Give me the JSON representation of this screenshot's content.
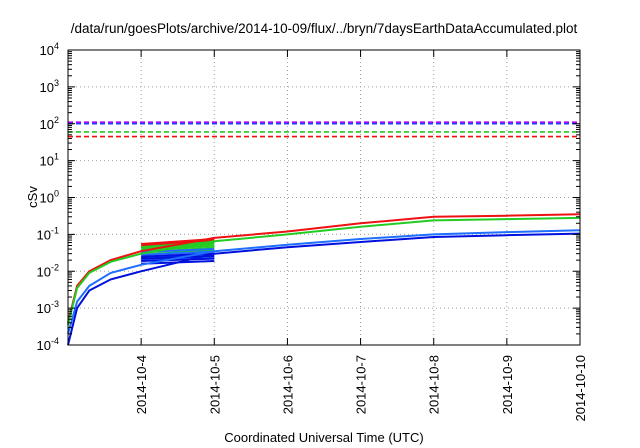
{
  "chart_data": {
    "type": "line",
    "title": "/data/run/goesPlots/archive/2014-10-09/flux/../bryn/7daysEarthDataAccumulated.plot",
    "xlabel": "Coordinated Universal Time (UTC)",
    "ylabel": "cSv",
    "xlim": [
      "2014-10-03",
      "2014-10-10"
    ],
    "ylim": [
      0.0001,
      10000
    ],
    "yscale": "log",
    "grid": true,
    "x_ticks": [
      "2014-10-4",
      "2014-10-5",
      "2014-10-6",
      "2014-10-7",
      "2014-10-8",
      "2014-10-9",
      "2014-10-10"
    ],
    "y_ticks": [
      {
        "value": 0.0001,
        "mantissa": "10",
        "exp": "-4"
      },
      {
        "value": 0.001,
        "mantissa": "10",
        "exp": "-3"
      },
      {
        "value": 0.01,
        "mantissa": "10",
        "exp": "-2"
      },
      {
        "value": 0.1,
        "mantissa": "10",
        "exp": "-1"
      },
      {
        "value": 1,
        "mantissa": "10",
        "exp": "0"
      },
      {
        "value": 10,
        "mantissa": "10",
        "exp": "1"
      },
      {
        "value": 100,
        "mantissa": "10",
        "exp": "2"
      },
      {
        "value": 1000,
        "mantissa": "10",
        "exp": "3"
      },
      {
        "value": 10000,
        "mantissa": "10",
        "exp": "4"
      }
    ],
    "thresholds": [
      {
        "value": 110,
        "color": "#b000ff"
      },
      {
        "value": 100,
        "color": "#2040ff"
      },
      {
        "value": 60,
        "color": "#22cc22"
      },
      {
        "value": 45,
        "color": "#ee1111"
      }
    ],
    "series": [
      {
        "color": "#ee1111",
        "points": [
          [
            "2014-10-03 00:00",
            0.0004
          ],
          [
            "2014-10-03 03:00",
            0.004
          ],
          [
            "2014-10-03 07:00",
            0.01
          ],
          [
            "2014-10-03 14:00",
            0.02
          ],
          [
            "2014-10-04 00:00",
            0.035
          ],
          [
            "2014-10-05 00:00",
            0.08
          ],
          [
            "2014-10-06 00:00",
            0.12
          ],
          [
            "2014-10-07 00:00",
            0.2
          ],
          [
            "2014-10-08 00:00",
            0.3
          ],
          [
            "2014-10-09 00:00",
            0.32
          ],
          [
            "2014-10-10 00:00",
            0.35
          ]
        ]
      },
      {
        "color": "#22cc22",
        "points": [
          [
            "2014-10-03 00:00",
            0.00035
          ],
          [
            "2014-10-03 03:00",
            0.0035
          ],
          [
            "2014-10-03 07:00",
            0.009
          ],
          [
            "2014-10-03 14:00",
            0.018
          ],
          [
            "2014-10-04 00:00",
            0.03
          ],
          [
            "2014-10-05 00:00",
            0.065
          ],
          [
            "2014-10-06 00:00",
            0.1
          ],
          [
            "2014-10-07 00:00",
            0.16
          ],
          [
            "2014-10-08 00:00",
            0.24
          ],
          [
            "2014-10-09 00:00",
            0.26
          ],
          [
            "2014-10-10 00:00",
            0.28
          ]
        ]
      },
      {
        "color": "#1e6eff",
        "points": [
          [
            "2014-10-03 00:00",
            0.0002
          ],
          [
            "2014-10-03 03:00",
            0.0015
          ],
          [
            "2014-10-03 07:00",
            0.004
          ],
          [
            "2014-10-03 14:00",
            0.009
          ],
          [
            "2014-10-04 00:00",
            0.015
          ],
          [
            "2014-10-05 00:00",
            0.035
          ],
          [
            "2014-10-06 00:00",
            0.052
          ],
          [
            "2014-10-07 00:00",
            0.075
          ],
          [
            "2014-10-08 00:00",
            0.1
          ],
          [
            "2014-10-09 00:00",
            0.115
          ],
          [
            "2014-10-10 00:00",
            0.13
          ]
        ]
      },
      {
        "color": "#0010dd",
        "points": [
          [
            "2014-10-03 00:00",
            0.0001
          ],
          [
            "2014-10-03 03:00",
            0.001
          ],
          [
            "2014-10-03 07:00",
            0.003
          ],
          [
            "2014-10-03 14:00",
            0.006
          ],
          [
            "2014-10-04 00:00",
            0.01
          ],
          [
            "2014-10-05 00:00",
            0.03
          ],
          [
            "2014-10-06 00:00",
            0.045
          ],
          [
            "2014-10-07 00:00",
            0.062
          ],
          [
            "2014-10-08 00:00",
            0.085
          ],
          [
            "2014-10-09 00:00",
            0.095
          ],
          [
            "2014-10-10 00:00",
            0.105
          ]
        ]
      }
    ],
    "bundles": [
      {
        "color": "#ee1111",
        "start": "2014-10-04 00:00",
        "end": "2014-10-05 00:00",
        "start_values": [
          0.045,
          0.05,
          0.055
        ],
        "end_values": [
          0.062,
          0.068,
          0.075
        ]
      },
      {
        "color": "#22cc22",
        "start": "2014-10-04 00:00",
        "end": "2014-10-05 00:00",
        "start_values": [
          0.028,
          0.032,
          0.036,
          0.04,
          0.045
        ],
        "end_values": [
          0.038,
          0.044,
          0.05,
          0.056,
          0.062
        ]
      },
      {
        "color": "#1e6eff",
        "start": "2014-10-04 00:00",
        "end": "2014-10-05 00:00",
        "start_values": [
          0.02,
          0.024,
          0.028,
          0.033
        ],
        "end_values": [
          0.024,
          0.029,
          0.034,
          0.04
        ]
      },
      {
        "color": "#0010dd",
        "start": "2014-10-04 00:00",
        "end": "2014-10-05 00:00",
        "start_values": [
          0.016,
          0.019,
          0.022,
          0.025
        ],
        "end_values": [
          0.019,
          0.022,
          0.026,
          0.03
        ]
      }
    ]
  }
}
